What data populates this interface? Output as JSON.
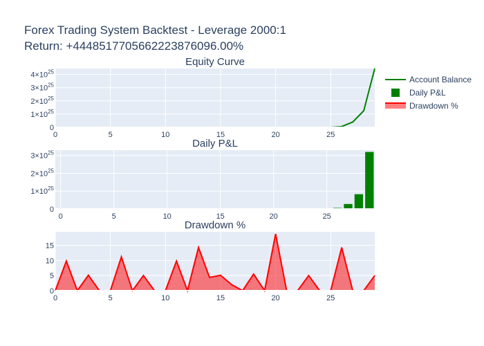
{
  "title": "Forex Trading System Backtest - Leverage 2000:1",
  "subtitle": "Return: +444851770566222387​6096.00%",
  "colors": {
    "plot_bg": "#e5ecf6",
    "equity": "#008000",
    "pnl": "#008000",
    "drawdown_line": "#ff0000",
    "drawdown_fill": "rgba(255,0,0,0.5)"
  },
  "legend": {
    "placement": "top-right",
    "items": [
      {
        "label": "Account Balance",
        "symbol": "line",
        "color": "#008000"
      },
      {
        "label": "Daily P&L",
        "symbol": "square",
        "color": "#008000"
      },
      {
        "label": "Drawdown %",
        "symbol": "fill",
        "color": "#ff0000"
      }
    ]
  },
  "chart_data": [
    {
      "type": "line",
      "title": "Equity Curve",
      "series": [
        {
          "name": "Account Balance",
          "color": "#008000"
        }
      ],
      "x": [
        0,
        1,
        2,
        3,
        4,
        5,
        6,
        7,
        8,
        9,
        10,
        11,
        12,
        13,
        14,
        15,
        16,
        17,
        18,
        19,
        20,
        21,
        22,
        23,
        24,
        25,
        26,
        27,
        28,
        29
      ],
      "y": [
        0,
        0,
        0,
        0,
        0,
        0,
        0,
        0,
        0,
        0,
        0,
        0,
        0,
        0,
        0,
        0,
        0,
        0,
        0,
        0,
        0,
        0,
        0,
        0,
        0,
        2e+22,
        6e+23,
        4e+24,
        1.25e+25,
        4.45e+25
      ],
      "xlim": [
        0,
        29
      ],
      "ylim": [
        0,
        4.45e+25
      ],
      "xticks": [
        0,
        5,
        10,
        15,
        20,
        25
      ],
      "yticks": [
        0,
        1e+25,
        2e+25,
        3e+25,
        4e+25
      ],
      "ytick_labels": [
        {
          "mant": "0",
          "exp": ""
        },
        {
          "mant": "1×10",
          "exp": "25"
        },
        {
          "mant": "2×10",
          "exp": "25"
        },
        {
          "mant": "3×10",
          "exp": "25"
        },
        {
          "mant": "4×10",
          "exp": "25"
        }
      ]
    },
    {
      "type": "bar",
      "title": "Daily P&L",
      "series": [
        {
          "name": "Daily P&L",
          "color": "#008000"
        }
      ],
      "x": [
        0,
        1,
        2,
        3,
        4,
        5,
        6,
        7,
        8,
        9,
        10,
        11,
        12,
        13,
        14,
        15,
        16,
        17,
        18,
        19,
        20,
        21,
        22,
        23,
        24,
        25,
        26,
        27,
        28,
        29
      ],
      "y": [
        0,
        0,
        0,
        0,
        0,
        0,
        0,
        0,
        0,
        0,
        0,
        0,
        0,
        0,
        0,
        0,
        0,
        0,
        0,
        0,
        0,
        0,
        0,
        0,
        0,
        1e+22,
        6e+23,
        2.8e+24,
        8.3e+24,
        3.2e+25
      ],
      "xlim": [
        -0.5,
        29.5
      ],
      "ylim": [
        0,
        3.3e+25
      ],
      "xticks": [
        0,
        5,
        10,
        15,
        20,
        25
      ],
      "yticks": [
        0,
        1e+25,
        2e+25,
        3e+25
      ],
      "ytick_labels": [
        {
          "mant": "0",
          "exp": ""
        },
        {
          "mant": "1×10",
          "exp": "25"
        },
        {
          "mant": "2×10",
          "exp": "25"
        },
        {
          "mant": "3×10",
          "exp": "25"
        }
      ]
    },
    {
      "type": "area",
      "title": "Drawdown %",
      "series": [
        {
          "name": "Drawdown %",
          "color": "#ff0000"
        }
      ],
      "x": [
        0,
        1,
        2,
        3,
        4,
        5,
        6,
        7,
        8,
        9,
        10,
        11,
        12,
        13,
        14,
        15,
        16,
        17,
        18,
        19,
        20,
        21,
        22,
        23,
        24,
        25,
        26,
        27,
        28,
        29
      ],
      "y": [
        0,
        9.8,
        0,
        5.1,
        0,
        0,
        11.2,
        0,
        5.0,
        0,
        0,
        9.8,
        0,
        14.3,
        4.4,
        5.1,
        2.0,
        0,
        5.5,
        0,
        18.8,
        0,
        0,
        5.0,
        0,
        0,
        14.3,
        0,
        0,
        5.0
      ],
      "xlim": [
        0,
        29
      ],
      "ylim": [
        0,
        19.5
      ],
      "xticks": [
        0,
        5,
        10,
        15,
        20,
        25
      ],
      "yticks": [
        0,
        5,
        10,
        15
      ],
      "ytick_labels": [
        {
          "mant": "0",
          "exp": ""
        },
        {
          "mant": "5",
          "exp": ""
        },
        {
          "mant": "10",
          "exp": ""
        },
        {
          "mant": "15",
          "exp": ""
        }
      ]
    }
  ]
}
